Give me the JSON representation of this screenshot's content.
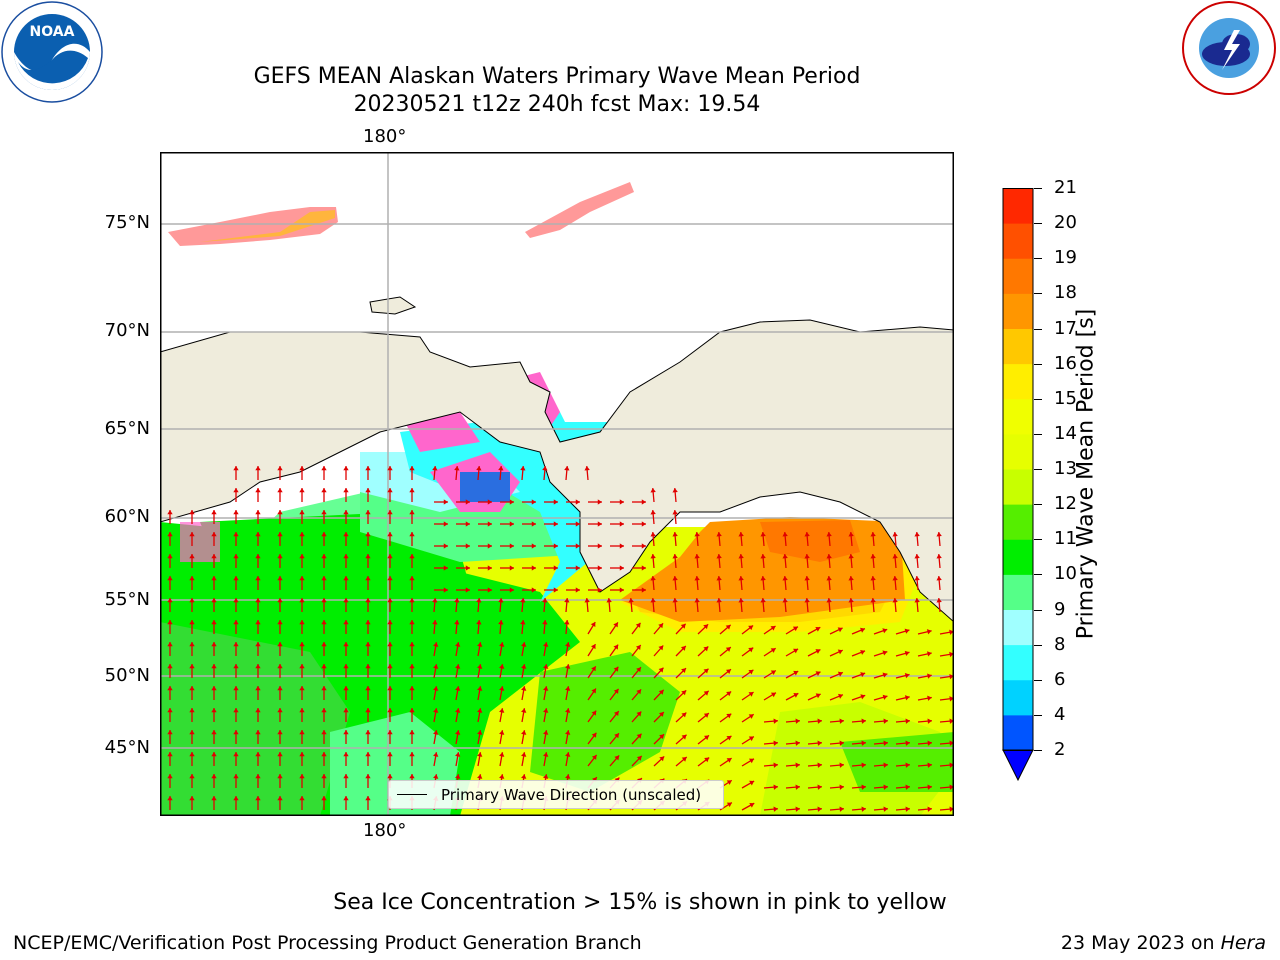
{
  "header": {
    "title_line1": "GEFS MEAN Alaskan Waters Primary Wave Mean Period",
    "title_line2": "20230521 t12z 240h fcst   Max: 19.54"
  },
  "logos": {
    "left": {
      "name": "noaa-logo",
      "label": "NOAA"
    },
    "right": {
      "name": "nws-logo",
      "label": "NATIONAL WEATHER SERVICE"
    }
  },
  "map": {
    "x_tick_label": "180°",
    "y_tick_labels": [
      "75°N",
      "70°N",
      "65°N",
      "60°N",
      "55°N",
      "50°N",
      "45°N"
    ],
    "legend_label": "Primary Wave Direction (unscaled)",
    "colors": {
      "land": "#efecdc",
      "arrow": "#e00000",
      "grid": "#b0b0b0",
      "ice": "#ff66cc"
    }
  },
  "colorbar": {
    "label": "Primary Wave Mean Period [s]",
    "ticks": [
      "2",
      "4",
      "6",
      "8",
      "9",
      "10",
      "11",
      "12",
      "13",
      "14",
      "15",
      "16",
      "17",
      "18",
      "19",
      "20",
      "21"
    ],
    "colors": [
      "#0055ff",
      "#00d2ff",
      "#33ffff",
      "#a0ffff",
      "#55ff88",
      "#00ee00",
      "#55ee00",
      "#c8ff00",
      "#e6ff00",
      "#f0ff00",
      "#ffee00",
      "#ffc800",
      "#ff9600",
      "#ff7800",
      "#ff5000",
      "#ff2800"
    ],
    "under_color": "#0000ff"
  },
  "footer": {
    "note": "Sea Ice Concentration > 15% is shown in pink to yellow",
    "credit": "NCEP/EMC/Verification Post Processing Product Generation Branch",
    "date_prefix": "23 May 2023 on ",
    "machine": "Hera"
  }
}
